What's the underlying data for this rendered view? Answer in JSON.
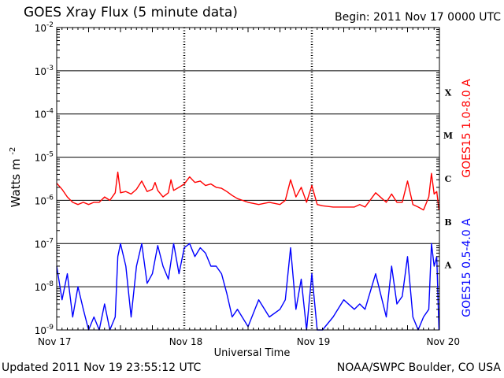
{
  "header": {
    "title": "GOES Xray Flux (5 minute data)",
    "begin": "Begin:  2011 Nov 17 0000 UTC"
  },
  "footer": {
    "updated": "Updated 2011 Nov 19 23:55:12 UTC",
    "credit": "NOAA/SWPC Boulder, CO USA"
  },
  "chart_data": {
    "type": "line",
    "title": "GOES Xray Flux (5 minute data)",
    "xlabel": "Universal Time",
    "ylabel": "Watts m",
    "ylabel_sup": "-2",
    "yscale": "log",
    "ylim": [
      1e-09,
      0.01
    ],
    "xlim": [
      "2011-11-17T00:00",
      "2011-11-20T00:00"
    ],
    "x_ticks": [
      "Nov 17",
      "Nov 18",
      "Nov 19",
      "Nov 20"
    ],
    "y_ticks": [
      {
        "value": 0.01,
        "base": "10",
        "exp": "-2"
      },
      {
        "value": 0.001,
        "base": "10",
        "exp": "-3"
      },
      {
        "value": 0.0001,
        "base": "10",
        "exp": "-4"
      },
      {
        "value": 1e-05,
        "base": "10",
        "exp": "-5"
      },
      {
        "value": 1e-06,
        "base": "10",
        "exp": "-6"
      },
      {
        "value": 1e-07,
        "base": "10",
        "exp": "-7"
      },
      {
        "value": 1e-08,
        "base": "10",
        "exp": "-8"
      },
      {
        "value": 1e-09,
        "base": "10",
        "exp": "-9"
      }
    ],
    "flare_classes": [
      {
        "label": "X",
        "value": 0.0001
      },
      {
        "label": "M",
        "value": 1e-05
      },
      {
        "label": "C",
        "value": 1e-06
      },
      {
        "label": "B",
        "value": 1e-07
      },
      {
        "label": "A",
        "value": 1e-08
      }
    ],
    "grid": true,
    "series": [
      {
        "name": "GOES15 1.0-8.0 A",
        "color": "#ff0000",
        "x": [
          "2011-11-17T00:00",
          "2011-11-17T01:00",
          "2011-11-17T02:00",
          "2011-11-17T03:00",
          "2011-11-17T04:00",
          "2011-11-17T05:00",
          "2011-11-17T06:00",
          "2011-11-17T07:00",
          "2011-11-17T08:00",
          "2011-11-17T09:00",
          "2011-11-17T10:00",
          "2011-11-17T11:00",
          "2011-11-17T11:30",
          "2011-11-17T12:00",
          "2011-11-17T13:00",
          "2011-11-17T14:00",
          "2011-11-17T15:00",
          "2011-11-17T16:00",
          "2011-11-17T17:00",
          "2011-11-17T18:00",
          "2011-11-17T18:30",
          "2011-11-17T19:00",
          "2011-11-17T20:00",
          "2011-11-17T21:00",
          "2011-11-17T21:30",
          "2011-11-17T22:00",
          "2011-11-17T23:00",
          "2011-11-18T00:00",
          "2011-11-18T01:00",
          "2011-11-18T02:00",
          "2011-11-18T03:00",
          "2011-11-18T04:00",
          "2011-11-18T05:00",
          "2011-11-18T06:00",
          "2011-11-18T07:00",
          "2011-11-18T08:00",
          "2011-11-18T09:00",
          "2011-11-18T10:00",
          "2011-11-18T12:00",
          "2011-11-18T14:00",
          "2011-11-18T16:00",
          "2011-11-18T18:00",
          "2011-11-18T19:00",
          "2011-11-18T20:00",
          "2011-11-18T21:00",
          "2011-11-18T22:00",
          "2011-11-18T23:00",
          "2011-11-19T00:00",
          "2011-11-19T01:00",
          "2011-11-19T02:00",
          "2011-11-19T04:00",
          "2011-11-19T06:00",
          "2011-11-19T08:00",
          "2011-11-19T09:00",
          "2011-11-19T10:00",
          "2011-11-19T12:00",
          "2011-11-19T14:00",
          "2011-11-19T15:00",
          "2011-11-19T16:00",
          "2011-11-19T17:00",
          "2011-11-19T18:00",
          "2011-11-19T19:00",
          "2011-11-19T20:00",
          "2011-11-19T21:00",
          "2011-11-19T22:00",
          "2011-11-19T22:30",
          "2011-11-19T23:00",
          "2011-11-19T23:30",
          "2011-11-19T23:55"
        ],
        "y": [
          2.5e-06,
          1.8e-06,
          1.2e-06,
          9e-07,
          8e-07,
          9e-07,
          8e-07,
          9e-07,
          9e-07,
          1.2e-06,
          1e-06,
          1.5e-06,
          4.5e-06,
          1.5e-06,
          1.6e-06,
          1.4e-06,
          1.8e-06,
          2.8e-06,
          1.6e-06,
          1.8e-06,
          2.6e-06,
          1.7e-06,
          1.2e-06,
          1.5e-06,
          3e-06,
          1.7e-06,
          2e-06,
          2.4e-06,
          3.5e-06,
          2.6e-06,
          2.8e-06,
          2.2e-06,
          2.4e-06,
          2e-06,
          1.9e-06,
          1.6e-06,
          1.3e-06,
          1.1e-06,
          9e-07,
          8e-07,
          9e-07,
          8e-07,
          1e-06,
          3e-06,
          1.2e-06,
          2e-06,
          9e-07,
          2.2e-06,
          8e-07,
          7.5e-07,
          7e-07,
          7e-07,
          7e-07,
          8e-07,
          7e-07,
          1.5e-06,
          9e-07,
          1.4e-06,
          9e-07,
          9e-07,
          2.8e-06,
          8e-07,
          7e-07,
          6e-07,
          1.2e-06,
          4.2e-06,
          1.4e-06,
          1.6e-06,
          6e-07
        ]
      },
      {
        "name": "GOES15 0.5-4.0 A",
        "color": "#0000ff",
        "x": [
          "2011-11-17T00:00",
          "2011-11-17T01:00",
          "2011-11-17T02:00",
          "2011-11-17T03:00",
          "2011-11-17T04:00",
          "2011-11-17T05:00",
          "2011-11-17T06:00",
          "2011-11-17T07:00",
          "2011-11-17T08:00",
          "2011-11-17T09:00",
          "2011-11-17T10:00",
          "2011-11-17T11:00",
          "2011-11-17T11:30",
          "2011-11-17T12:00",
          "2011-11-17T13:00",
          "2011-11-17T14:00",
          "2011-11-17T15:00",
          "2011-11-17T16:00",
          "2011-11-17T17:00",
          "2011-11-17T18:00",
          "2011-11-17T19:00",
          "2011-11-17T20:00",
          "2011-11-17T21:00",
          "2011-11-17T22:00",
          "2011-11-17T23:00",
          "2011-11-18T00:00",
          "2011-11-18T01:00",
          "2011-11-18T02:00",
          "2011-11-18T03:00",
          "2011-11-18T04:00",
          "2011-11-18T05:00",
          "2011-11-18T06:00",
          "2011-11-18T07:00",
          "2011-11-18T08:00",
          "2011-11-18T09:00",
          "2011-11-18T10:00",
          "2011-11-18T12:00",
          "2011-11-18T14:00",
          "2011-11-18T16:00",
          "2011-11-18T18:00",
          "2011-11-18T19:00",
          "2011-11-18T20:00",
          "2011-11-18T21:00",
          "2011-11-18T22:00",
          "2011-11-18T23:00",
          "2011-11-19T00:00",
          "2011-11-19T01:00",
          "2011-11-19T02:00",
          "2011-11-19T04:00",
          "2011-11-19T06:00",
          "2011-11-19T08:00",
          "2011-11-19T09:00",
          "2011-11-19T10:00",
          "2011-11-19T12:00",
          "2011-11-19T14:00",
          "2011-11-19T15:00",
          "2011-11-19T16:00",
          "2011-11-19T17:00",
          "2011-11-19T18:00",
          "2011-11-19T19:00",
          "2011-11-19T20:00",
          "2011-11-19T21:00",
          "2011-11-19T22:00",
          "2011-11-19T22:30",
          "2011-11-19T23:00",
          "2011-11-19T23:30",
          "2011-11-19T23:55"
        ],
        "y": [
          3e-08,
          5e-09,
          2e-08,
          2e-09,
          1e-08,
          3e-09,
          1e-09,
          2e-09,
          1e-09,
          4e-09,
          1e-09,
          2e-09,
          5e-08,
          1e-07,
          3e-08,
          2e-09,
          3e-08,
          1e-07,
          1.2e-08,
          2e-08,
          9e-08,
          3e-08,
          1.5e-08,
          1e-07,
          2e-08,
          8e-08,
          1e-07,
          5e-08,
          8e-08,
          6e-08,
          3e-08,
          3e-08,
          2e-08,
          7e-09,
          2e-09,
          3e-09,
          1.2e-09,
          5e-09,
          2e-09,
          3e-09,
          5e-09,
          8e-08,
          3e-09,
          1.5e-08,
          1e-09,
          2e-08,
          1e-09,
          1e-09,
          2e-09,
          5e-09,
          3e-09,
          4e-09,
          3e-09,
          2e-08,
          2e-09,
          3e-08,
          4e-09,
          6e-09,
          5e-08,
          2e-09,
          1e-09,
          2e-09,
          3e-09,
          1e-07,
          3e-08,
          5e-08,
          1e-09
        ]
      }
    ]
  }
}
